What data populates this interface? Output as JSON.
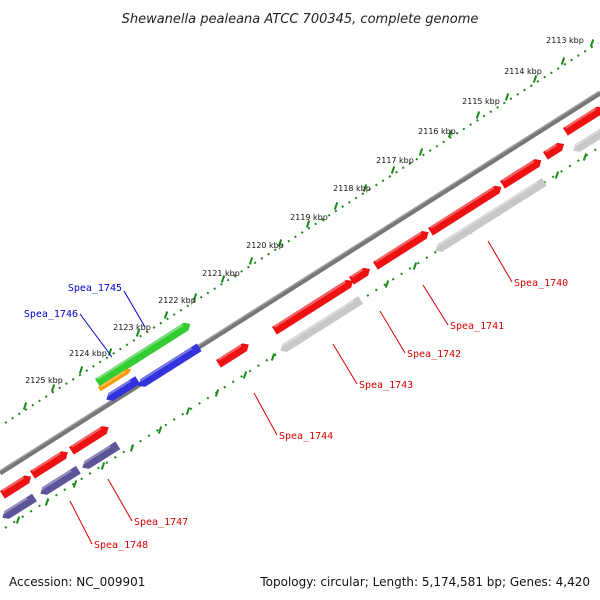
{
  "title": "Shewanella pealeana ATCC 700345, complete genome",
  "footer": {
    "accession": "Accession: NC_009901",
    "summary": "Topology: circular; Length: 5,174,581 bp; Genes: 4,420"
  },
  "scale": {
    "labels": [
      "2113 kbp",
      "2114 kbp",
      "2115 kbp",
      "2116 kbp",
      "2117 kbp",
      "2118 kbp",
      "2119 kbp",
      "2120 kbp",
      "2121 kbp",
      "2122 kbp",
      "2123 kbp",
      "2124 kbp",
      "2125 kbp"
    ]
  },
  "gene_labels": [
    {
      "id": "Spea_1740",
      "color": "#dd0000"
    },
    {
      "id": "Spea_1741",
      "color": "#dd0000"
    },
    {
      "id": "Spea_1742",
      "color": "#dd0000"
    },
    {
      "id": "Spea_1743",
      "color": "#dd0000"
    },
    {
      "id": "Spea_1744",
      "color": "#dd0000"
    },
    {
      "id": "Spea_1745",
      "color": "#0000cc"
    },
    {
      "id": "Spea_1746",
      "color": "#0000cc"
    },
    {
      "id": "Spea_1747",
      "color": "#dd0000"
    },
    {
      "id": "Spea_1748",
      "color": "#dd0000"
    }
  ],
  "colors": {
    "forward_gene": "#ee1111",
    "reverse_gene": "#c8c8c8",
    "rrna_gene": "#3333dd",
    "green_feature": "#33cc33",
    "orange_feature": "#ff9900",
    "purple_gene": "#5a5599",
    "backbone": "#777777",
    "ruler": "#1a8a1a"
  }
}
